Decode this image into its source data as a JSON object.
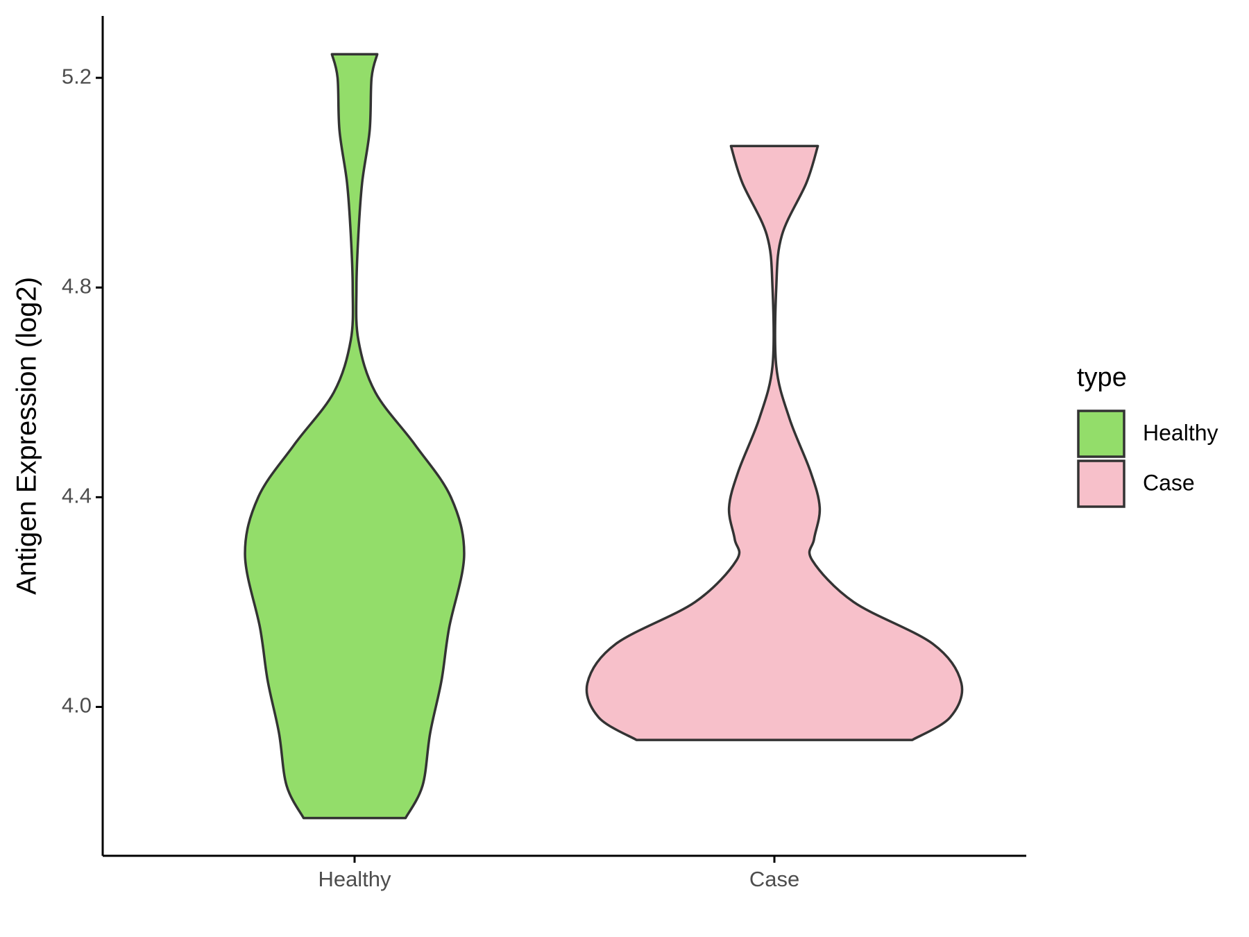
{
  "chart_data": {
    "type": "violin",
    "y_label": "Antigen Expression (log2)",
    "categories": [
      "Healthy",
      "Case"
    ],
    "ylim": [
      3.716,
      5.318
    ],
    "yticks": [
      {
        "value": 4.0,
        "label": "4.0"
      },
      {
        "value": 4.4,
        "label": "4.4"
      },
      {
        "value": 4.8,
        "label": "4.8"
      },
      {
        "value": 5.2,
        "label": "5.2"
      }
    ],
    "legend_title": "type",
    "legend_position": "right",
    "series": [
      {
        "name": "Healthy",
        "color": "#93dd6a",
        "y": [
          3.788,
          3.85,
          3.95,
          4.05,
          4.15,
          4.29,
          4.4,
          4.5,
          4.6,
          4.7,
          4.8,
          4.9,
          5.0,
          5.1,
          5.2,
          5.245
        ],
        "density": [
          0.27,
          0.36,
          0.4,
          0.46,
          0.5,
          0.58,
          0.51,
          0.32,
          0.11,
          0.02,
          0.01,
          0.02,
          0.04,
          0.08,
          0.09,
          0.12
        ]
      },
      {
        "name": "Case",
        "color": "#f7c0ca",
        "y": [
          3.937,
          3.98,
          4.045,
          4.12,
          4.2,
          4.28,
          4.32,
          4.38,
          4.45,
          4.55,
          4.65,
          4.8,
          4.9,
          5.0,
          5.07
        ],
        "density": [
          0.73,
          0.93,
          0.99,
          0.84,
          0.42,
          0.2,
          0.21,
          0.24,
          0.19,
          0.08,
          0.01,
          0.01,
          0.04,
          0.17,
          0.23
        ]
      }
    ]
  }
}
